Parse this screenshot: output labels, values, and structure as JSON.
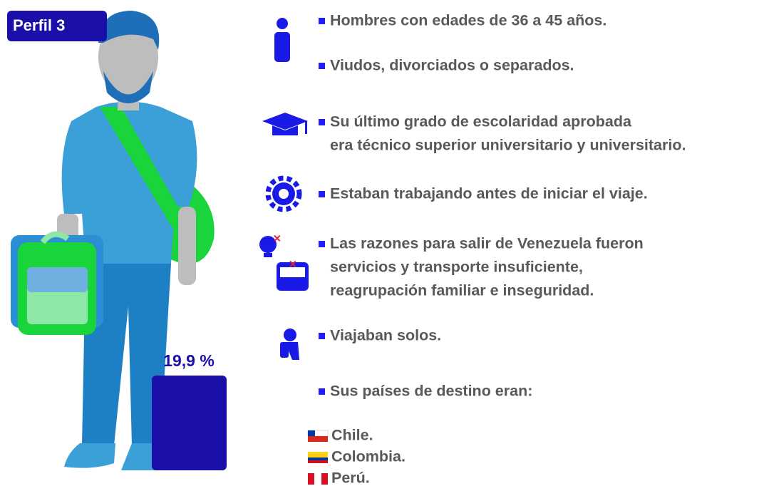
{
  "profile": {
    "label": "Perfil 3",
    "share": "19,9 %"
  },
  "items": [
    {
      "lines": [
        "Hombres con edades de 36 a 45 años."
      ]
    },
    {
      "lines": [
        "Viudos, divorciados o separados."
      ]
    },
    {
      "lines": [
        "Su último grado de escolaridad aprobada",
        "era técnico superior universitario y universitario."
      ]
    },
    {
      "lines": [
        "Estaban trabajando antes de iniciar el viaje."
      ]
    },
    {
      "lines": [
        "Las razones para salir de Venezuela fueron",
        "servicios y transporte insuficiente,",
        "reagrupación familiar e inseguridad."
      ]
    },
    {
      "lines": [
        "Viajaban solos."
      ]
    },
    {
      "lines": [
        "Sus países de destino eran:"
      ]
    }
  ],
  "destinations": [
    "Chile.",
    "Colombia.",
    "Perú."
  ]
}
